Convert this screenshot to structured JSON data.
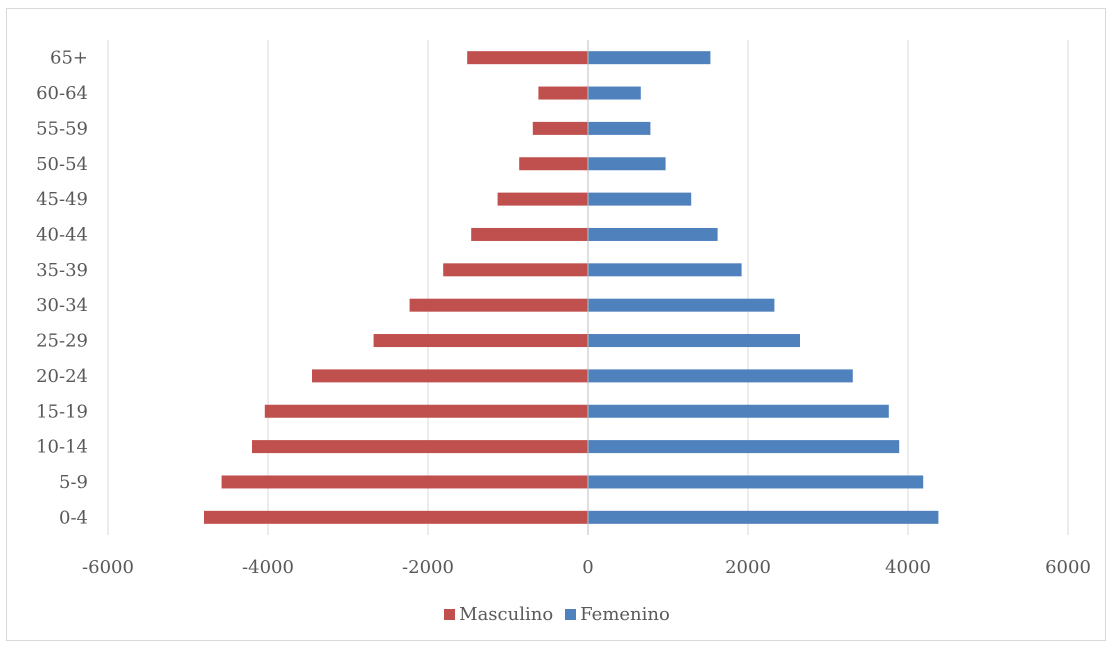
{
  "chart_data": {
    "type": "bar",
    "orientation": "horizontal",
    "title": "",
    "xlabel": "",
    "ylabel": "",
    "categories": [
      "0-4",
      "5-9",
      "10-14",
      "15-19",
      "20-24",
      "25-29",
      "30-34",
      "35-39",
      "40-44",
      "45-49",
      "50-54",
      "55-59",
      "60-64",
      "65+"
    ],
    "series": [
      {
        "name": "Masculino",
        "color": "#c0504d",
        "values": [
          -4800,
          -4580,
          -4200,
          -4040,
          -3450,
          -2680,
          -2230,
          -1810,
          -1460,
          -1130,
          -860,
          -690,
          -620,
          -1510
        ]
      },
      {
        "name": "Femenino",
        "color": "#4f81bd",
        "values": [
          4380,
          4190,
          3890,
          3760,
          3310,
          2650,
          2330,
          1920,
          1620,
          1290,
          970,
          780,
          660,
          1530
        ]
      }
    ],
    "xlim": [
      -6000,
      6000
    ],
    "xticks": [
      "-6000",
      "-4000",
      "-2000",
      "0",
      "2000",
      "4000",
      "6000"
    ],
    "xtick_values": [
      -6000,
      -4000,
      -2000,
      0,
      2000,
      4000,
      6000
    ],
    "grid": "vertical",
    "legend_position": "bottom",
    "colors": {
      "grid": "#d9d9d9",
      "axis": "#bfbfbf",
      "text": "#595959"
    }
  }
}
